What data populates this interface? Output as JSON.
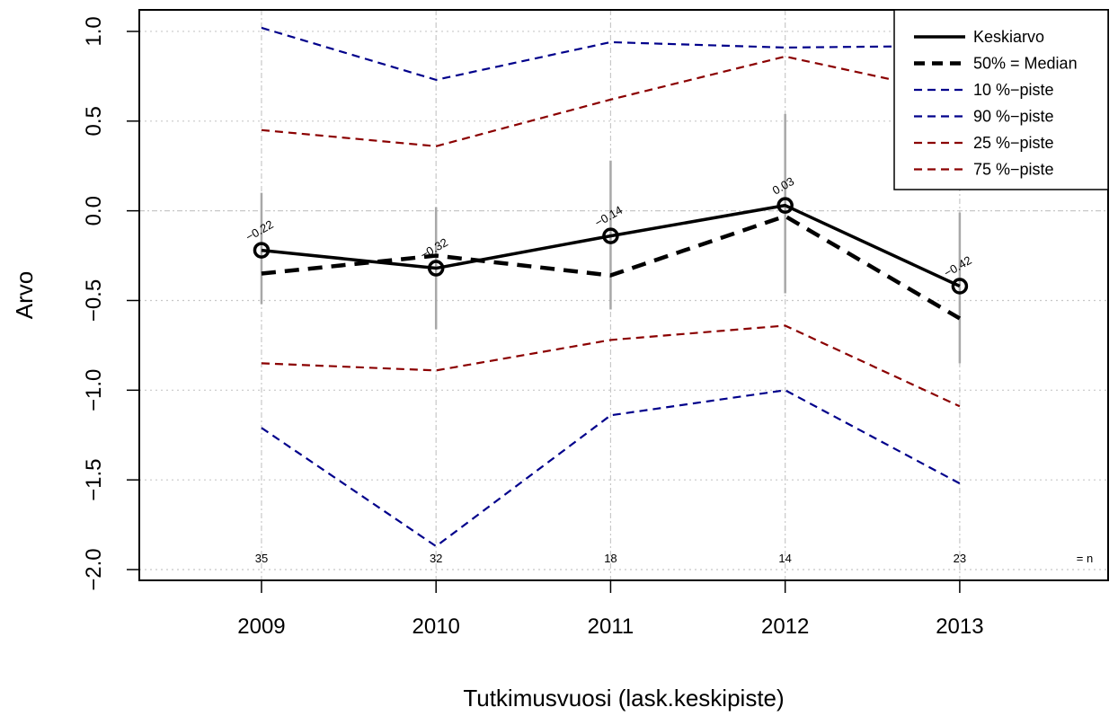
{
  "chart_data": {
    "type": "line",
    "title": "",
    "xlabel": "Tutkimusvuosi (lask.keskipiste)",
    "ylabel": "Arvo",
    "x": [
      2009,
      2010,
      2011,
      2012,
      2013
    ],
    "x_tick_labels": [
      "2009",
      "2010",
      "2011",
      "2012",
      "2013"
    ],
    "xlim": [
      2008.3,
      2013.85
    ],
    "ylim": [
      -2.06,
      1.12
    ],
    "y_ticks": [
      -2.0,
      -1.5,
      -1.0,
      -0.5,
      0.0,
      0.5,
      1.0
    ],
    "y_tick_labels": [
      "−2.0",
      "−1.5",
      "−1.0",
      "−0.5",
      "0.0",
      "0.5",
      "1.0"
    ],
    "grid": true,
    "legend_position": "top-right",
    "series": [
      {
        "name": "Keskiarvo",
        "style": "solid-thick",
        "color": "#000000",
        "values": [
          -0.22,
          -0.32,
          -0.14,
          0.03,
          -0.42
        ]
      },
      {
        "name": "50% = Median",
        "style": "dashed-thick",
        "color": "#000000",
        "values": [
          -0.35,
          -0.25,
          -0.36,
          -0.03,
          -0.6
        ]
      },
      {
        "name": "10 %−piste",
        "style": "dashed",
        "color": "#00008B",
        "values": [
          -1.21,
          -1.87,
          -1.14,
          -1.0,
          -1.52
        ]
      },
      {
        "name": "90 %−piste",
        "style": "dashed",
        "color": "#00008B",
        "values": [
          1.02,
          0.73,
          0.94,
          0.91,
          0.92
        ]
      },
      {
        "name": "25 %−piste",
        "style": "dashed",
        "color": "#8B0000",
        "values": [
          -0.85,
          -0.89,
          -0.72,
          -0.64,
          -1.09
        ]
      },
      {
        "name": "75 %−piste",
        "style": "dashed",
        "color": "#8B0000",
        "values": [
          0.45,
          0.36,
          0.62,
          0.86,
          0.65
        ]
      }
    ],
    "mean_labels": [
      "−0.22",
      "−0.32",
      "−0.14",
      "0.03",
      "−0.42"
    ],
    "error_bars": [
      {
        "low": -0.52,
        "high": 0.1
      },
      {
        "low": -0.66,
        "high": 0.02
      },
      {
        "low": -0.55,
        "high": 0.28
      },
      {
        "low": -0.46,
        "high": 0.54
      },
      {
        "low": -0.85,
        "high": -0.01
      }
    ],
    "n_values": [
      "35",
      "32",
      "18",
      "14",
      "23"
    ],
    "n_label": "= n",
    "colors": {
      "grid": "#c8c8c8",
      "error_bar": "#a8a8a8"
    }
  }
}
